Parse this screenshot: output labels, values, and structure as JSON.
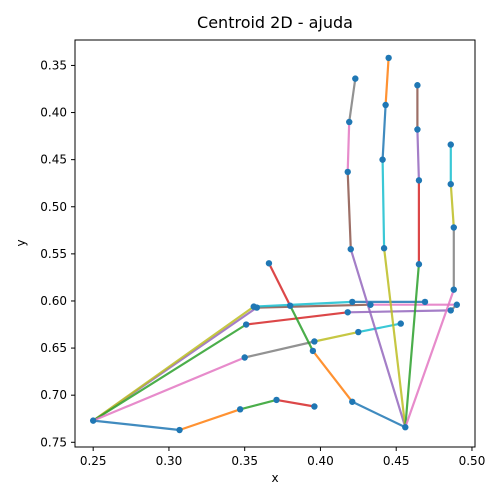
{
  "chart_data": {
    "type": "line",
    "title": "Centroid 2D - ajuda",
    "xlabel": "x",
    "ylabel": "y",
    "xlim": [
      0.238,
      0.502
    ],
    "ylim": [
      0.755,
      0.323
    ],
    "y_inverted": true,
    "grid": false,
    "xticks": [
      0.25,
      0.3,
      0.35,
      0.4,
      0.45,
      0.5
    ],
    "xtick_labels": [
      "0.25",
      "0.30",
      "0.35",
      "0.40",
      "0.45",
      "0.50"
    ],
    "yticks": [
      0.35,
      0.4,
      0.45,
      0.5,
      0.55,
      0.6,
      0.65,
      0.7,
      0.75
    ],
    "ytick_labels": [
      "0.35",
      "0.40",
      "0.45",
      "0.50",
      "0.55",
      "0.60",
      "0.65",
      "0.70",
      "0.75"
    ],
    "marker_color": "#1f77b4",
    "segments": [
      {
        "color": "#1f77b4",
        "x": [
          0.25,
          0.307
        ],
        "y": [
          0.727,
          0.737
        ]
      },
      {
        "color": "#ff7f0e",
        "x": [
          0.307,
          0.347
        ],
        "y": [
          0.737,
          0.715
        ]
      },
      {
        "color": "#2ca02c",
        "x": [
          0.347,
          0.371
        ],
        "y": [
          0.715,
          0.705
        ]
      },
      {
        "color": "#d62728",
        "x": [
          0.371,
          0.396
        ],
        "y": [
          0.705,
          0.712
        ]
      },
      {
        "color": "#9467bd",
        "x": [
          0.25,
          0.358
        ],
        "y": [
          0.727,
          0.607
        ]
      },
      {
        "color": "#8c564b",
        "x": [
          0.358,
          0.433
        ],
        "y": [
          0.607,
          0.604
        ]
      },
      {
        "color": "#e377c2",
        "x": [
          0.433,
          0.49
        ],
        "y": [
          0.604,
          0.604
        ]
      },
      {
        "color": "#7f7f7f",
        "x": [
          0.49,
          0.486
        ],
        "y": [
          0.604,
          0.61
        ]
      },
      {
        "color": "#bcbd22",
        "x": [
          0.25,
          0.356
        ],
        "y": [
          0.727,
          0.606
        ]
      },
      {
        "color": "#17becf",
        "x": [
          0.356,
          0.421
        ],
        "y": [
          0.606,
          0.601
        ]
      },
      {
        "color": "#1f77b4",
        "x": [
          0.421,
          0.469
        ],
        "y": [
          0.601,
          0.601
        ]
      },
      {
        "color": "#2ca02c",
        "x": [
          0.25,
          0.351
        ],
        "y": [
          0.727,
          0.625
        ]
      },
      {
        "color": "#d62728",
        "x": [
          0.351,
          0.418
        ],
        "y": [
          0.625,
          0.612
        ]
      },
      {
        "color": "#9467bd",
        "x": [
          0.418,
          0.486
        ],
        "y": [
          0.612,
          0.61
        ]
      },
      {
        "color": "#e377c2",
        "x": [
          0.25,
          0.35
        ],
        "y": [
          0.727,
          0.66
        ]
      },
      {
        "color": "#7f7f7f",
        "x": [
          0.35,
          0.396
        ],
        "y": [
          0.66,
          0.643
        ]
      },
      {
        "color": "#bcbd22",
        "x": [
          0.396,
          0.425
        ],
        "y": [
          0.643,
          0.633
        ]
      },
      {
        "color": "#17becf",
        "x": [
          0.425,
          0.453
        ],
        "y": [
          0.633,
          0.624
        ]
      },
      {
        "color": "#d62728",
        "x": [
          0.366,
          0.38
        ],
        "y": [
          0.56,
          0.605
        ]
      },
      {
        "color": "#2ca02c",
        "x": [
          0.38,
          0.395
        ],
        "y": [
          0.605,
          0.653
        ]
      },
      {
        "color": "#ff7f0e",
        "x": [
          0.395,
          0.421
        ],
        "y": [
          0.653,
          0.707
        ]
      },
      {
        "color": "#1f77b4",
        "x": [
          0.421,
          0.456
        ],
        "y": [
          0.707,
          0.734
        ]
      },
      {
        "color": "#9467bd",
        "x": [
          0.456,
          0.42
        ],
        "y": [
          0.734,
          0.545
        ]
      },
      {
        "color": "#8c564b",
        "x": [
          0.42,
          0.418
        ],
        "y": [
          0.545,
          0.463
        ]
      },
      {
        "color": "#e377c2",
        "x": [
          0.418,
          0.419
        ],
        "y": [
          0.463,
          0.41
        ]
      },
      {
        "color": "#7f7f7f",
        "x": [
          0.419,
          0.423
        ],
        "y": [
          0.41,
          0.364
        ]
      },
      {
        "color": "#bcbd22",
        "x": [
          0.456,
          0.442
        ],
        "y": [
          0.734,
          0.544
        ]
      },
      {
        "color": "#17becf",
        "x": [
          0.442,
          0.441
        ],
        "y": [
          0.544,
          0.45
        ]
      },
      {
        "color": "#1f77b4",
        "x": [
          0.441,
          0.443
        ],
        "y": [
          0.45,
          0.392
        ]
      },
      {
        "color": "#ff7f0e",
        "x": [
          0.443,
          0.445
        ],
        "y": [
          0.392,
          0.342
        ]
      },
      {
        "color": "#2ca02c",
        "x": [
          0.456,
          0.465
        ],
        "y": [
          0.734,
          0.561
        ]
      },
      {
        "color": "#d62728",
        "x": [
          0.465,
          0.465
        ],
        "y": [
          0.561,
          0.472
        ]
      },
      {
        "color": "#9467bd",
        "x": [
          0.465,
          0.464
        ],
        "y": [
          0.472,
          0.418
        ]
      },
      {
        "color": "#8c564b",
        "x": [
          0.464,
          0.464
        ],
        "y": [
          0.418,
          0.371
        ]
      },
      {
        "color": "#e377c2",
        "x": [
          0.456,
          0.488
        ],
        "y": [
          0.734,
          0.588
        ]
      },
      {
        "color": "#7f7f7f",
        "x": [
          0.488,
          0.488
        ],
        "y": [
          0.588,
          0.522
        ]
      },
      {
        "color": "#bcbd22",
        "x": [
          0.488,
          0.486
        ],
        "y": [
          0.522,
          0.476
        ]
      },
      {
        "color": "#17becf",
        "x": [
          0.486,
          0.486
        ],
        "y": [
          0.476,
          0.434
        ]
      }
    ]
  }
}
